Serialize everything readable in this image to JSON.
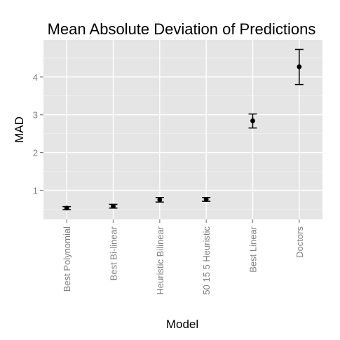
{
  "chart_data": {
    "type": "scatter",
    "title": "Mean Absolute Deviation of Predictions",
    "xlabel": "Model",
    "ylabel": "MAD",
    "categories": [
      "Best Polynomial",
      "Best Bi-linear",
      "Heuristic Bilinear",
      "50 15 5 Heuristic",
      "Best Linear",
      "Doctors"
    ],
    "values": [
      0.53,
      0.58,
      0.75,
      0.76,
      2.84,
      4.27
    ],
    "error_low": [
      0.49,
      0.53,
      0.69,
      0.71,
      2.65,
      3.8
    ],
    "error_high": [
      0.57,
      0.63,
      0.81,
      0.81,
      3.02,
      4.73
    ],
    "ylim": [
      0.23,
      4.98
    ],
    "yticks": [
      1,
      2,
      3,
      4
    ],
    "grid": true,
    "colors": {
      "panel": "#e5e5e5",
      "grid_major": "#ffffff",
      "grid_minor": "#f2f2f2",
      "point": "#000000",
      "tick_label": "#7f7f7f"
    }
  }
}
